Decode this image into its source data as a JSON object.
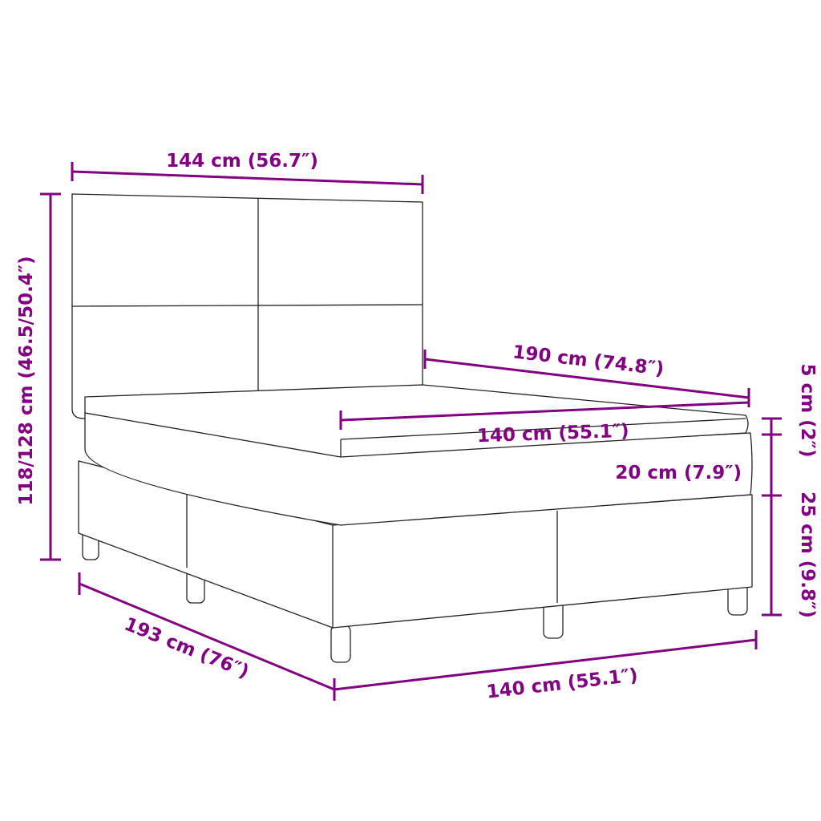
{
  "colors": {
    "dimension": "#800080",
    "outline": "#222222"
  },
  "labels": {
    "headboard_width": "144 cm (56.7″)",
    "total_height": "118/128 cm (46.5/50.4″)",
    "length": "190 cm (74.8″)",
    "mattress_width": "140 cm (55.1″)",
    "topper_height": "5 cm (2″)",
    "mattress_height": "20 cm (7.9″)",
    "base_height": "25 cm (9.8″)",
    "total_length": "193 cm (76″)",
    "base_width": "140 cm (55.1″)"
  }
}
